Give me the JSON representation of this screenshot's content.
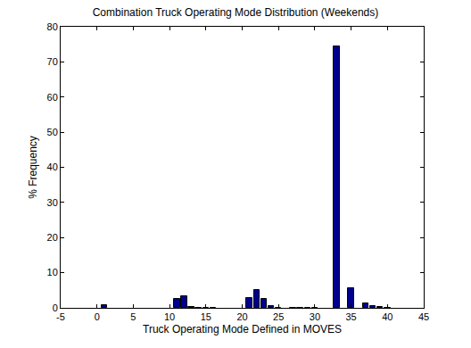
{
  "chart_data": {
    "type": "bar",
    "title": "Combination Truck Operating Mode Distribution (Weekends)",
    "x_label": "Truck Operating Mode Defined in MOVES",
    "y_label": "% Frequency",
    "x": [
      1,
      11,
      12,
      13,
      14,
      15,
      16,
      21,
      22,
      23,
      24,
      25,
      27,
      28,
      29,
      30,
      33,
      35,
      37,
      38,
      39,
      40
    ],
    "values": [
      0.8,
      2.5,
      3.2,
      0.3,
      0.1,
      0.1,
      0.1,
      2.8,
      5.0,
      2.5,
      0.4,
      0.1,
      0.1,
      0.1,
      0.1,
      0.1,
      74.5,
      5.7,
      1.2,
      0.4,
      0.2,
      0.1
    ],
    "color": "#00008f",
    "xlim": [
      -5,
      45
    ],
    "xticks": [
      -5,
      0,
      5,
      10,
      15,
      20,
      25,
      30,
      35,
      40,
      45
    ],
    "ylim": [
      0,
      80
    ],
    "yticks": [
      0,
      10,
      20,
      30,
      40,
      50,
      60,
      70,
      80
    ],
    "grid": false
  }
}
